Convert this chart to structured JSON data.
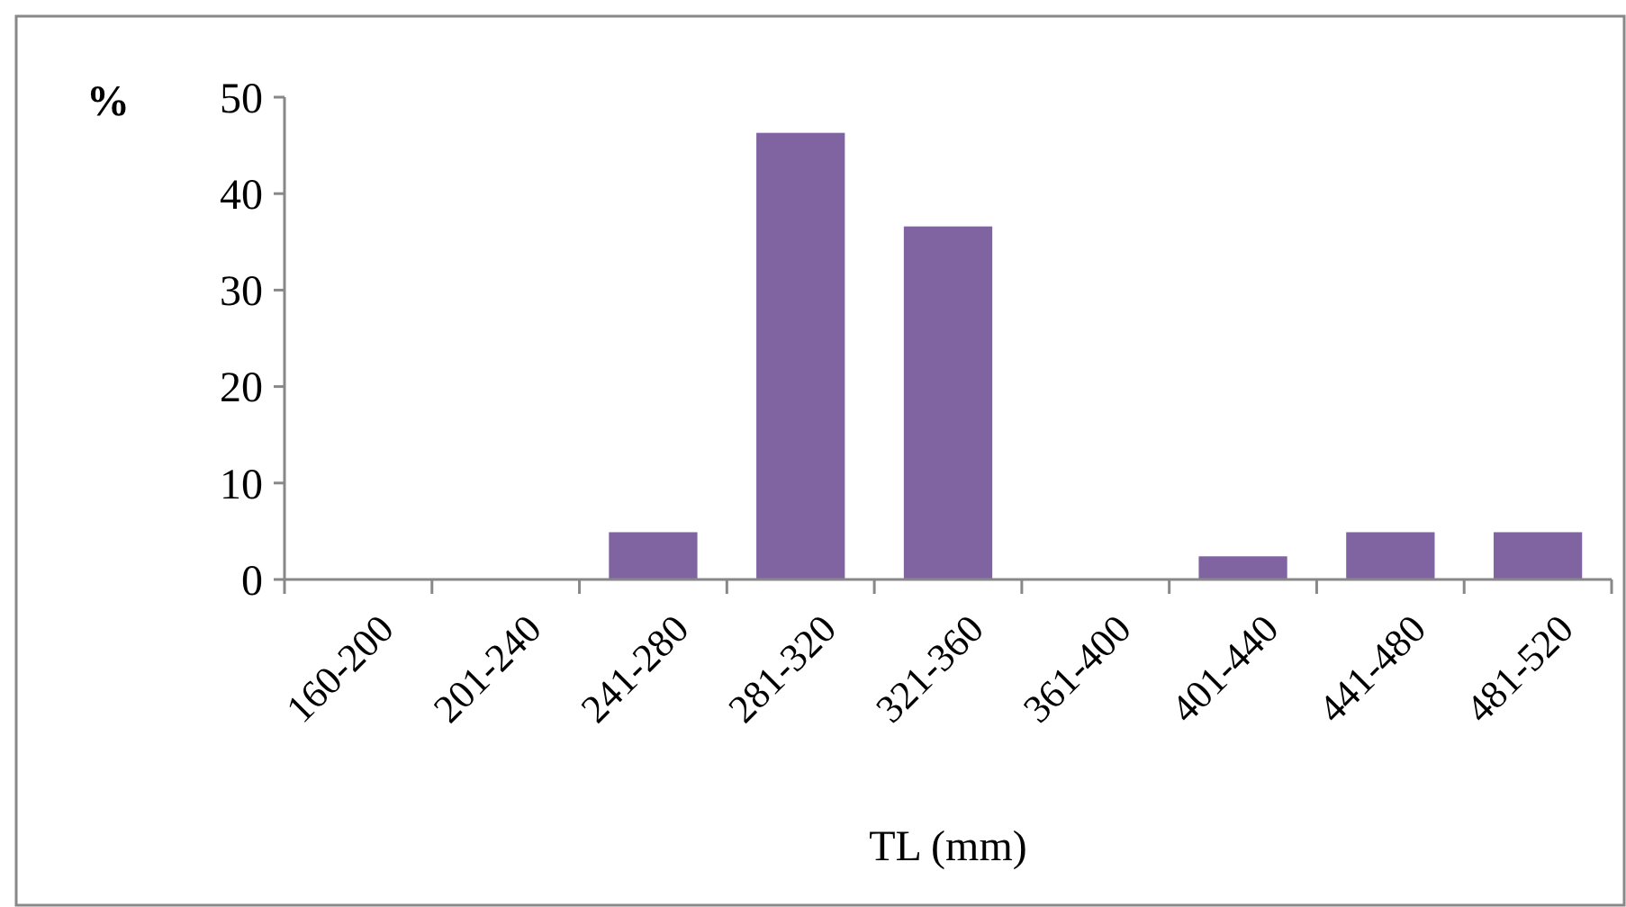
{
  "chart_data": {
    "type": "bar",
    "xlabel": "TL (mm)",
    "ylabel": "%",
    "categories": [
      "160-200",
      "201-240",
      "241-280",
      "281-320",
      "321-360",
      "361-400",
      "401-440",
      "441-480",
      "481-520"
    ],
    "values": [
      0,
      0,
      4.9,
      46.3,
      36.6,
      0,
      2.4,
      4.9,
      4.9
    ],
    "color": "#8064a2",
    "ylim": [
      0,
      50
    ],
    "yticks": [
      0,
      10,
      20,
      30,
      40,
      50
    ],
    "grid": false
  }
}
